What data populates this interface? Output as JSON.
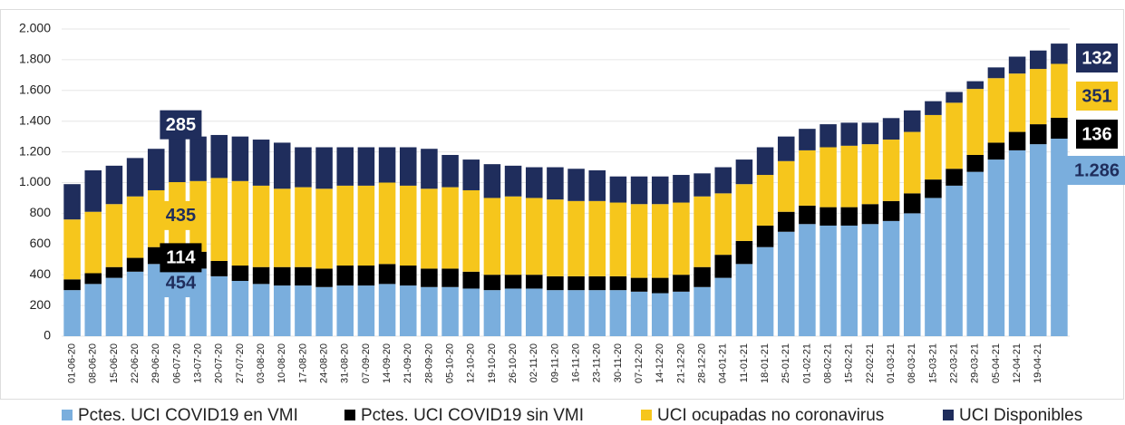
{
  "chart_data": {
    "type": "stacked-bar",
    "categories": [
      "01-06-20",
      "08-06-20",
      "15-06-20",
      "22-06-20",
      "29-06-20",
      "06-07-20",
      "13-07-20",
      "20-07-20",
      "27-07-20",
      "03-08-20",
      "10-08-20",
      "17-08-20",
      "24-08-20",
      "31-08-20",
      "07-09-20",
      "14-09-20",
      "21-09-20",
      "28-09-20",
      "05-10-20",
      "12-10-20",
      "19-10-20",
      "26-10-20",
      "02-11-20",
      "09-11-20",
      "16-11-20",
      "23-11-20",
      "30-11-20",
      "07-12-20",
      "14-12-20",
      "21-12-20",
      "28-12-20",
      "04-01-21",
      "11-01-21",
      "18-01-21",
      "25-01-21",
      "01-02-21",
      "08-02-21",
      "15-02-21",
      "22-02-21",
      "01-03-21",
      "08-03-21",
      "15-03-21",
      "22-03-21",
      "29-03-21",
      "05-04-21",
      "12-04-21",
      "19-04-21",
      null
    ],
    "series": [
      {
        "name": "Pctes. UCI COVID19 en VMI",
        "color": "#7aaedd",
        "label_color": "#1f2d5c",
        "values": [
          300,
          340,
          380,
          420,
          470,
          454,
          440,
          390,
          360,
          340,
          330,
          330,
          320,
          330,
          330,
          340,
          330,
          320,
          320,
          310,
          300,
          310,
          310,
          300,
          300,
          300,
          300,
          290,
          280,
          290,
          320,
          380,
          470,
          580,
          680,
          730,
          720,
          720,
          730,
          750,
          800,
          900,
          980,
          1070,
          1150,
          1210,
          1250,
          1286
        ],
        "value_labels": [
          null,
          null,
          null,
          null,
          null,
          "454",
          null,
          null,
          null,
          null,
          null,
          null,
          null,
          null,
          null,
          null,
          null,
          null,
          null,
          null,
          null,
          null,
          null,
          null,
          null,
          null,
          null,
          null,
          null,
          null,
          null,
          null,
          null,
          null,
          null,
          null,
          null,
          null,
          null,
          null,
          null,
          null,
          null,
          null,
          null,
          null,
          null,
          "1.286"
        ]
      },
      {
        "name": "Pctes. UCI COVID19 sin VMI",
        "color": "#000000",
        "label_color": "#ffffff",
        "values": [
          70,
          70,
          70,
          90,
          110,
          114,
          110,
          100,
          100,
          110,
          120,
          120,
          120,
          130,
          130,
          130,
          130,
          120,
          120,
          110,
          100,
          90,
          90,
          90,
          90,
          90,
          90,
          90,
          100,
          110,
          130,
          150,
          150,
          140,
          130,
          120,
          120,
          120,
          130,
          130,
          130,
          120,
          110,
          110,
          110,
          120,
          130,
          136
        ],
        "value_labels": [
          null,
          null,
          null,
          null,
          null,
          "114",
          null,
          null,
          null,
          null,
          null,
          null,
          null,
          null,
          null,
          null,
          null,
          null,
          null,
          null,
          null,
          null,
          null,
          null,
          null,
          null,
          null,
          null,
          null,
          null,
          null,
          null,
          null,
          null,
          null,
          null,
          null,
          null,
          null,
          null,
          null,
          null,
          null,
          null,
          null,
          null,
          null,
          "136"
        ]
      },
      {
        "name": "UCI ocupadas no coronavirus",
        "color": "#f6c61c",
        "label_color": "#1f2d5c",
        "values": [
          390,
          400,
          410,
          400,
          370,
          435,
          460,
          540,
          550,
          530,
          510,
          520,
          520,
          520,
          520,
          530,
          520,
          520,
          530,
          530,
          500,
          510,
          500,
          500,
          490,
          490,
          480,
          480,
          480,
          470,
          460,
          400,
          370,
          330,
          330,
          360,
          390,
          400,
          390,
          400,
          400,
          420,
          430,
          430,
          420,
          380,
          360,
          351
        ],
        "value_labels": [
          null,
          null,
          null,
          null,
          null,
          "435",
          null,
          null,
          null,
          null,
          null,
          null,
          null,
          null,
          null,
          null,
          null,
          null,
          null,
          null,
          null,
          null,
          null,
          null,
          null,
          null,
          null,
          null,
          null,
          null,
          null,
          null,
          null,
          null,
          null,
          null,
          null,
          null,
          null,
          null,
          null,
          null,
          null,
          null,
          null,
          null,
          null,
          "351"
        ]
      },
      {
        "name": "UCI Disponibles",
        "color": "#1f2d5c",
        "label_color": "#ffffff",
        "values": [
          230,
          270,
          250,
          250,
          270,
          285,
          290,
          280,
          290,
          300,
          300,
          260,
          270,
          250,
          250,
          230,
          250,
          260,
          210,
          200,
          220,
          200,
          200,
          210,
          210,
          200,
          170,
          180,
          180,
          180,
          150,
          170,
          160,
          180,
          160,
          140,
          150,
          150,
          140,
          140,
          140,
          90,
          70,
          50,
          70,
          110,
          120,
          132
        ],
        "value_labels": [
          null,
          null,
          null,
          null,
          null,
          "285",
          null,
          null,
          null,
          null,
          null,
          null,
          null,
          null,
          null,
          null,
          null,
          null,
          null,
          null,
          null,
          null,
          null,
          null,
          null,
          null,
          null,
          null,
          null,
          null,
          null,
          null,
          null,
          null,
          null,
          null,
          null,
          null,
          null,
          null,
          null,
          null,
          null,
          null,
          null,
          null,
          null,
          "132"
        ]
      }
    ],
    "ylim": [
      0,
      2000
    ],
    "yticks": [
      0,
      200,
      400,
      600,
      800,
      {
        "value": 1000,
        "label": "1.000"
      },
      {
        "value": 1200,
        "label": "1.200"
      },
      {
        "value": 1400,
        "label": "1.400"
      },
      {
        "value": 1600,
        "label": "1.600"
      },
      {
        "value": 1800,
        "label": "1.800"
      },
      {
        "value": 2000,
        "label": "2.000"
      }
    ],
    "grid": true
  }
}
